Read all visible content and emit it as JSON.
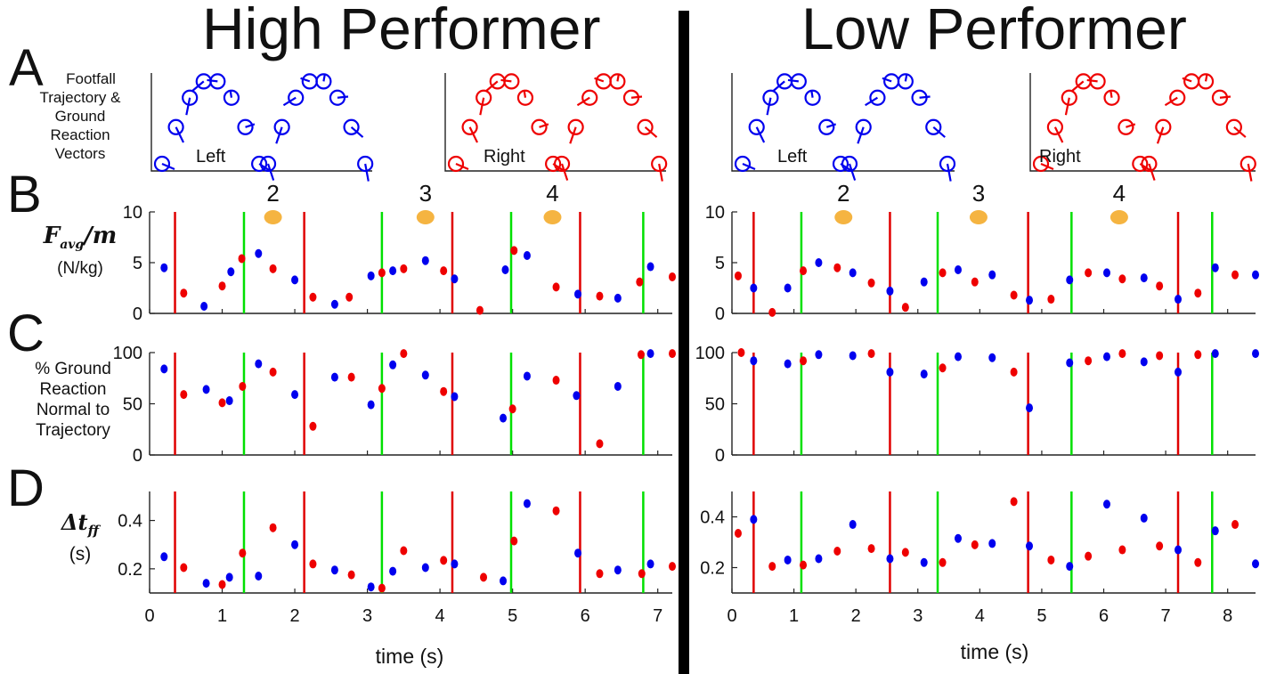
{
  "titles": {
    "high": "High Performer",
    "low": "Low Performer"
  },
  "panel_letters": [
    "A",
    "B",
    "C",
    "D"
  ],
  "labels": {
    "A": [
      "Footfall",
      "Trajectory &",
      "Ground",
      "Reaction",
      "Vectors"
    ],
    "B_sub": "(N/kg)",
    "C": [
      "% Ground",
      "Reaction",
      "Normal to",
      "Trajectory"
    ],
    "D_sub": "(s)",
    "xlabel": "time (s)",
    "left": "Left",
    "right": "Right"
  },
  "colors": {
    "left": "#0000ee",
    "right": "#ee0000",
    "touchdown": "#e00000",
    "takeoff": "#00e000",
    "hold": "#f5b441"
  },
  "chart_data": [
    {
      "name": "High Performer",
      "type": "scatter",
      "xlim": [
        0,
        7.2
      ],
      "xticks": [
        0,
        1,
        2,
        3,
        4,
        5,
        6,
        7
      ],
      "xlabel": "time (s)",
      "red_lines": [
        0.35,
        2.13,
        4.17,
        5.93
      ],
      "green_lines": [
        1.3,
        3.2,
        4.98,
        6.8
      ],
      "holds": [
        {
          "x": 1.7,
          "label": "2"
        },
        {
          "x": 3.8,
          "label": "3"
        },
        {
          "x": 5.55,
          "label": "4"
        }
      ],
      "favg": {
        "ylim": [
          0,
          10
        ],
        "yticks": [
          0,
          5,
          10
        ],
        "left": [
          [
            0.2,
            4.5
          ],
          [
            0.75,
            0.7
          ],
          [
            1.12,
            4.1
          ],
          [
            1.5,
            5.9
          ],
          [
            2.0,
            3.3
          ],
          [
            2.55,
            0.9
          ],
          [
            3.05,
            3.7
          ],
          [
            3.35,
            4.2
          ],
          [
            3.8,
            5.2
          ],
          [
            4.2,
            3.4
          ],
          [
            4.9,
            4.3
          ],
          [
            5.2,
            5.7
          ],
          [
            5.9,
            1.9
          ],
          [
            6.45,
            1.5
          ],
          [
            6.9,
            4.6
          ]
        ],
        "right": [
          [
            0.47,
            2.0
          ],
          [
            1.0,
            2.7
          ],
          [
            1.27,
            5.4
          ],
          [
            1.7,
            4.4
          ],
          [
            2.25,
            1.6
          ],
          [
            2.75,
            1.6
          ],
          [
            3.2,
            4.0
          ],
          [
            3.5,
            4.4
          ],
          [
            4.05,
            4.2
          ],
          [
            4.55,
            0.3
          ],
          [
            5.02,
            6.2
          ],
          [
            5.6,
            2.6
          ],
          [
            6.2,
            1.7
          ],
          [
            6.75,
            3.1
          ],
          [
            7.2,
            3.6
          ]
        ]
      },
      "pct": {
        "ylim": [
          0,
          100
        ],
        "yticks": [
          0,
          50,
          100
        ],
        "left": [
          [
            0.2,
            84
          ],
          [
            0.78,
            64
          ],
          [
            1.1,
            53
          ],
          [
            1.5,
            89
          ],
          [
            2.0,
            59
          ],
          [
            2.55,
            76
          ],
          [
            3.05,
            49
          ],
          [
            3.35,
            88
          ],
          [
            3.8,
            78
          ],
          [
            4.2,
            57
          ],
          [
            4.87,
            36
          ],
          [
            5.2,
            77
          ],
          [
            5.88,
            58
          ],
          [
            6.45,
            67
          ],
          [
            6.9,
            99
          ]
        ],
        "right": [
          [
            0.47,
            59
          ],
          [
            1.0,
            51
          ],
          [
            1.28,
            67
          ],
          [
            1.7,
            81
          ],
          [
            2.25,
            28
          ],
          [
            2.78,
            76
          ],
          [
            3.2,
            65
          ],
          [
            3.5,
            99
          ],
          [
            4.05,
            62
          ],
          [
            5.0,
            45
          ],
          [
            5.6,
            73
          ],
          [
            6.2,
            11
          ],
          [
            6.77,
            98
          ],
          [
            7.2,
            99
          ]
        ]
      },
      "dtff": {
        "ylim": [
          0.1,
          0.52
        ],
        "yticks": [
          0.2,
          0.4
        ],
        "left": [
          [
            0.2,
            0.25
          ],
          [
            0.78,
            0.14
          ],
          [
            1.1,
            0.165
          ],
          [
            1.5,
            0.17
          ],
          [
            2.0,
            0.3
          ],
          [
            2.55,
            0.195
          ],
          [
            3.05,
            0.125
          ],
          [
            3.35,
            0.19
          ],
          [
            3.8,
            0.205
          ],
          [
            4.2,
            0.22
          ],
          [
            4.87,
            0.15
          ],
          [
            5.2,
            0.47
          ],
          [
            5.9,
            0.265
          ],
          [
            6.45,
            0.195
          ],
          [
            6.9,
            0.22
          ]
        ],
        "right": [
          [
            0.47,
            0.205
          ],
          [
            1.0,
            0.135
          ],
          [
            1.28,
            0.265
          ],
          [
            1.7,
            0.37
          ],
          [
            2.25,
            0.22
          ],
          [
            2.78,
            0.175
          ],
          [
            3.2,
            0.12
          ],
          [
            3.5,
            0.275
          ],
          [
            4.05,
            0.235
          ],
          [
            4.6,
            0.165
          ],
          [
            5.02,
            0.315
          ],
          [
            5.6,
            0.44
          ],
          [
            6.2,
            0.18
          ],
          [
            6.78,
            0.18
          ],
          [
            7.2,
            0.21
          ]
        ]
      }
    },
    {
      "name": "Low Performer",
      "type": "scatter",
      "xlim": [
        0,
        8.45
      ],
      "xticks": [
        0,
        1,
        2,
        3,
        4,
        5,
        6,
        7,
        8
      ],
      "xlabel": "time (s)",
      "red_lines": [
        0.35,
        2.55,
        4.78,
        7.2
      ],
      "green_lines": [
        1.12,
        3.32,
        5.48,
        7.75
      ],
      "holds": [
        {
          "x": 1.8,
          "label": "2"
        },
        {
          "x": 3.98,
          "label": "3"
        },
        {
          "x": 6.25,
          "label": "4"
        }
      ],
      "favg": {
        "ylim": [
          0,
          10
        ],
        "yticks": [
          0,
          5,
          10
        ],
        "left": [
          [
            0.35,
            2.5
          ],
          [
            0.9,
            2.5
          ],
          [
            1.4,
            5.0
          ],
          [
            1.95,
            4.0
          ],
          [
            2.55,
            2.2
          ],
          [
            3.1,
            3.1
          ],
          [
            3.65,
            4.3
          ],
          [
            4.2,
            3.8
          ],
          [
            4.8,
            1.3
          ],
          [
            5.45,
            3.3
          ],
          [
            6.05,
            4.0
          ],
          [
            6.65,
            3.5
          ],
          [
            7.2,
            1.4
          ],
          [
            7.8,
            4.5
          ],
          [
            8.45,
            3.8
          ]
        ],
        "right": [
          [
            0.1,
            3.7
          ],
          [
            0.65,
            0.1
          ],
          [
            1.15,
            4.2
          ],
          [
            1.7,
            4.5
          ],
          [
            2.25,
            3.0
          ],
          [
            2.8,
            0.6
          ],
          [
            3.4,
            4.0
          ],
          [
            3.92,
            3.1
          ],
          [
            4.55,
            1.8
          ],
          [
            5.15,
            1.4
          ],
          [
            5.75,
            4.0
          ],
          [
            6.3,
            3.4
          ],
          [
            6.9,
            2.7
          ],
          [
            7.52,
            2.0
          ],
          [
            8.12,
            3.8
          ]
        ]
      },
      "pct": {
        "ylim": [
          0,
          100
        ],
        "yticks": [
          0,
          50,
          100
        ],
        "left": [
          [
            0.35,
            92
          ],
          [
            0.9,
            89
          ],
          [
            1.4,
            98
          ],
          [
            1.95,
            97
          ],
          [
            2.55,
            81
          ],
          [
            3.1,
            79
          ],
          [
            3.65,
            96
          ],
          [
            4.2,
            95
          ],
          [
            4.8,
            46
          ],
          [
            5.45,
            90
          ],
          [
            6.05,
            96
          ],
          [
            6.65,
            91
          ],
          [
            7.2,
            81
          ],
          [
            7.8,
            99
          ],
          [
            8.45,
            99
          ]
        ],
        "right": [
          [
            0.15,
            100
          ],
          [
            1.15,
            92
          ],
          [
            2.25,
            99
          ],
          [
            3.4,
            85
          ],
          [
            4.55,
            81
          ],
          [
            5.75,
            92
          ],
          [
            6.3,
            99
          ],
          [
            6.9,
            97
          ],
          [
            7.52,
            98
          ]
        ]
      },
      "dtff": {
        "ylim": [
          0.1,
          0.5
        ],
        "yticks": [
          0.2,
          0.4
        ],
        "left": [
          [
            0.35,
            0.39
          ],
          [
            0.9,
            0.23
          ],
          [
            1.4,
            0.235
          ],
          [
            1.95,
            0.37
          ],
          [
            2.55,
            0.235
          ],
          [
            3.1,
            0.22
          ],
          [
            3.65,
            0.315
          ],
          [
            4.2,
            0.295
          ],
          [
            4.8,
            0.285
          ],
          [
            5.45,
            0.205
          ],
          [
            6.05,
            0.45
          ],
          [
            6.65,
            0.395
          ],
          [
            7.2,
            0.27
          ],
          [
            7.8,
            0.345
          ],
          [
            8.45,
            0.215
          ]
        ],
        "right": [
          [
            0.1,
            0.335
          ],
          [
            0.65,
            0.205
          ],
          [
            1.15,
            0.21
          ],
          [
            1.7,
            0.265
          ],
          [
            2.25,
            0.275
          ],
          [
            2.8,
            0.26
          ],
          [
            3.4,
            0.22
          ],
          [
            3.92,
            0.29
          ],
          [
            4.55,
            0.46
          ],
          [
            5.15,
            0.23
          ],
          [
            5.75,
            0.245
          ],
          [
            6.3,
            0.27
          ],
          [
            6.9,
            0.285
          ],
          [
            7.52,
            0.22
          ],
          [
            8.12,
            0.37
          ]
        ]
      }
    }
  ]
}
